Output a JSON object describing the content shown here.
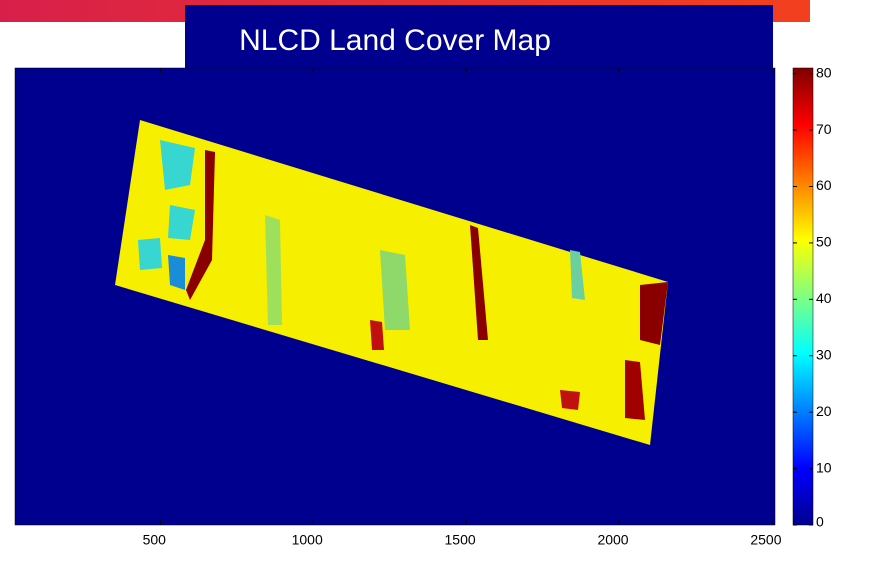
{
  "chart_data": {
    "type": "image",
    "title": "NLCD Land Cover Map",
    "xlim": [
      25,
      2510
    ],
    "xticks": [
      500,
      1000,
      1500,
      2000,
      2500
    ],
    "colormap": "jet",
    "clim": [
      0,
      81
    ],
    "colorbar_ticks": [
      0,
      10,
      20,
      30,
      40,
      50,
      60,
      70,
      80
    ]
  }
}
